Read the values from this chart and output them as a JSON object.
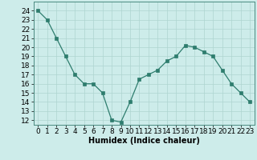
{
  "x": [
    0,
    1,
    2,
    3,
    4,
    5,
    6,
    7,
    8,
    9,
    10,
    11,
    12,
    13,
    14,
    15,
    16,
    17,
    18,
    19,
    20,
    21,
    22,
    23
  ],
  "y": [
    24,
    23,
    21,
    19,
    17,
    16,
    16,
    15,
    12,
    11.8,
    14,
    16.5,
    17,
    17.5,
    18.5,
    19,
    20.2,
    20,
    19.5,
    19,
    17.5,
    16,
    15,
    14
  ],
  "xlabel": "Humidex (Indice chaleur)",
  "ylabel": "",
  "ylim": [
    11.5,
    25
  ],
  "xlim": [
    -0.5,
    23.5
  ],
  "yticks": [
    12,
    13,
    14,
    15,
    16,
    17,
    18,
    19,
    20,
    21,
    22,
    23,
    24
  ],
  "xticks": [
    0,
    1,
    2,
    3,
    4,
    5,
    6,
    7,
    8,
    9,
    10,
    11,
    12,
    13,
    14,
    15,
    16,
    17,
    18,
    19,
    20,
    21,
    22,
    23
  ],
  "line_color": "#2e7d6e",
  "marker_color": "#2e7d6e",
  "bg_color": "#cdecea",
  "grid_color": "#aed4d0",
  "label_fontsize": 7,
  "tick_fontsize": 6.5
}
